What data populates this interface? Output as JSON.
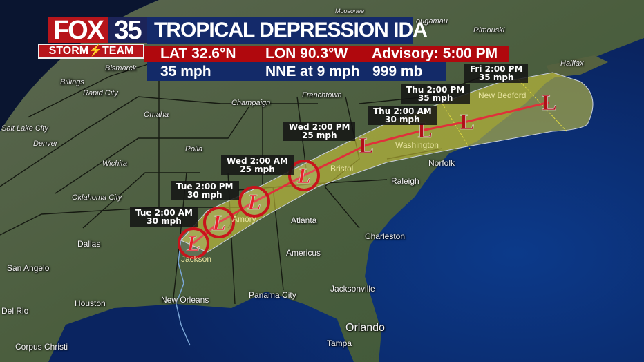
{
  "logo": {
    "network": "FOX",
    "channel": "35",
    "team": "STORM⚡TEAM"
  },
  "storm": {
    "title": "TROPICAL DEPRESSION IDA",
    "lat": "LAT 32.6°N",
    "lon": "LON 90.3°W",
    "advisory": "Advisory: 5:00 PM",
    "max_wind": "35 mph",
    "movement": "NNE at 9 mph",
    "pressure": "999 mb"
  },
  "forecast_points": [
    {
      "time": "Tue 2:00 AM",
      "wind": "30 mph"
    },
    {
      "time": "Tue 2:00 PM",
      "wind": "30 mph"
    },
    {
      "time": "Wed 2:00 AM",
      "wind": "25 mph"
    },
    {
      "time": "Wed 2:00 PM",
      "wind": "25 mph"
    },
    {
      "time": "Thu 2:00 AM",
      "wind": "30 mph"
    },
    {
      "time": "Thu 2:00 PM",
      "wind": "35 mph"
    },
    {
      "time": "Fri 2:00 PM",
      "wind": "35 mph"
    }
  ],
  "storm_symbol": "L",
  "cities": {
    "moosonee": "Moosonee",
    "chibougamau": "ougamau",
    "rimouski": "Rimouski",
    "halifax": "Halifax",
    "bismarck": "Bismarck",
    "billings": "Billings",
    "rapid_city": "Rapid City",
    "omaha": "Omaha",
    "salt_lake": "Salt Lake City",
    "denver": "Denver",
    "wichita": "Wichita",
    "rolla": "Rolla",
    "champaign": "Champaign",
    "frenchtown": "Frenchtown",
    "oklahoma_city": "Oklahoma City",
    "dallas": "Dallas",
    "san_angelo": "San Angelo",
    "houston": "Houston",
    "del_rio": "Del Rio",
    "corpus_christi": "Corpus Christi",
    "new_orleans": "New Orleans",
    "panama_city": "Panama City",
    "jacksonville": "Jacksonville",
    "orlando": "Orlando",
    "tampa": "Tampa",
    "americus": "Americus",
    "atlanta": "Atlanta",
    "charleston": "Charleston",
    "raleigh": "Raleigh",
    "norfolk": "Norfolk",
    "bristol": "Bristol",
    "washington": "Washington",
    "new_bedford": "New Bedford",
    "jackson": "Jackson",
    "amory": "Amory"
  },
  "colors": {
    "brand_red": "#b7151b",
    "brand_navy": "#142a6a",
    "cone": "#d8d23c",
    "track": "#e0303a",
    "ocean": "#0d2a66",
    "land": "#4a5a3c"
  }
}
